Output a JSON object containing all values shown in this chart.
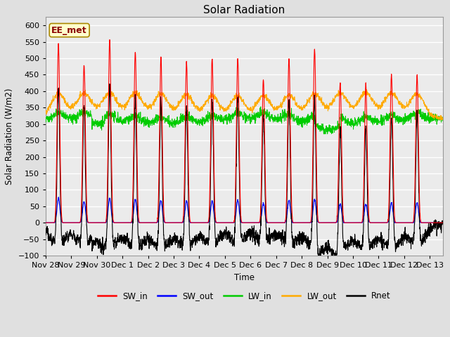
{
  "title": "Solar Radiation",
  "ylabel": "Solar Radiation (W/m2)",
  "xlabel": "Time",
  "ylim": [
    -100,
    625
  ],
  "yticks": [
    -100,
    -50,
    0,
    50,
    100,
    150,
    200,
    250,
    300,
    350,
    400,
    450,
    500,
    550,
    600
  ],
  "xlim_days": [
    0,
    15.5
  ],
  "colors": {
    "SW_in": "#ff0000",
    "SW_out": "#0000ff",
    "LW_in": "#00cc00",
    "LW_out": "#ffaa00",
    "Rnet": "#000000"
  },
  "label_box_text": "EE_met",
  "bg_color": "#e0e0e0",
  "plot_bg_color": "#ebebeb",
  "x_tick_labels": [
    "Nov 28",
    "Nov 29",
    "Nov 30",
    "Dec 1",
    "Dec 2",
    "Dec 3",
    "Dec 4",
    "Dec 5",
    "Dec 6",
    "Dec 7",
    "Dec 8",
    "Dec 9",
    "Dec 10",
    "Dec 11",
    "Dec 12",
    "Dec 13"
  ],
  "x_tick_positions": [
    0,
    1,
    2,
    3,
    4,
    5,
    6,
    7,
    8,
    9,
    10,
    11,
    12,
    13,
    14,
    15
  ]
}
